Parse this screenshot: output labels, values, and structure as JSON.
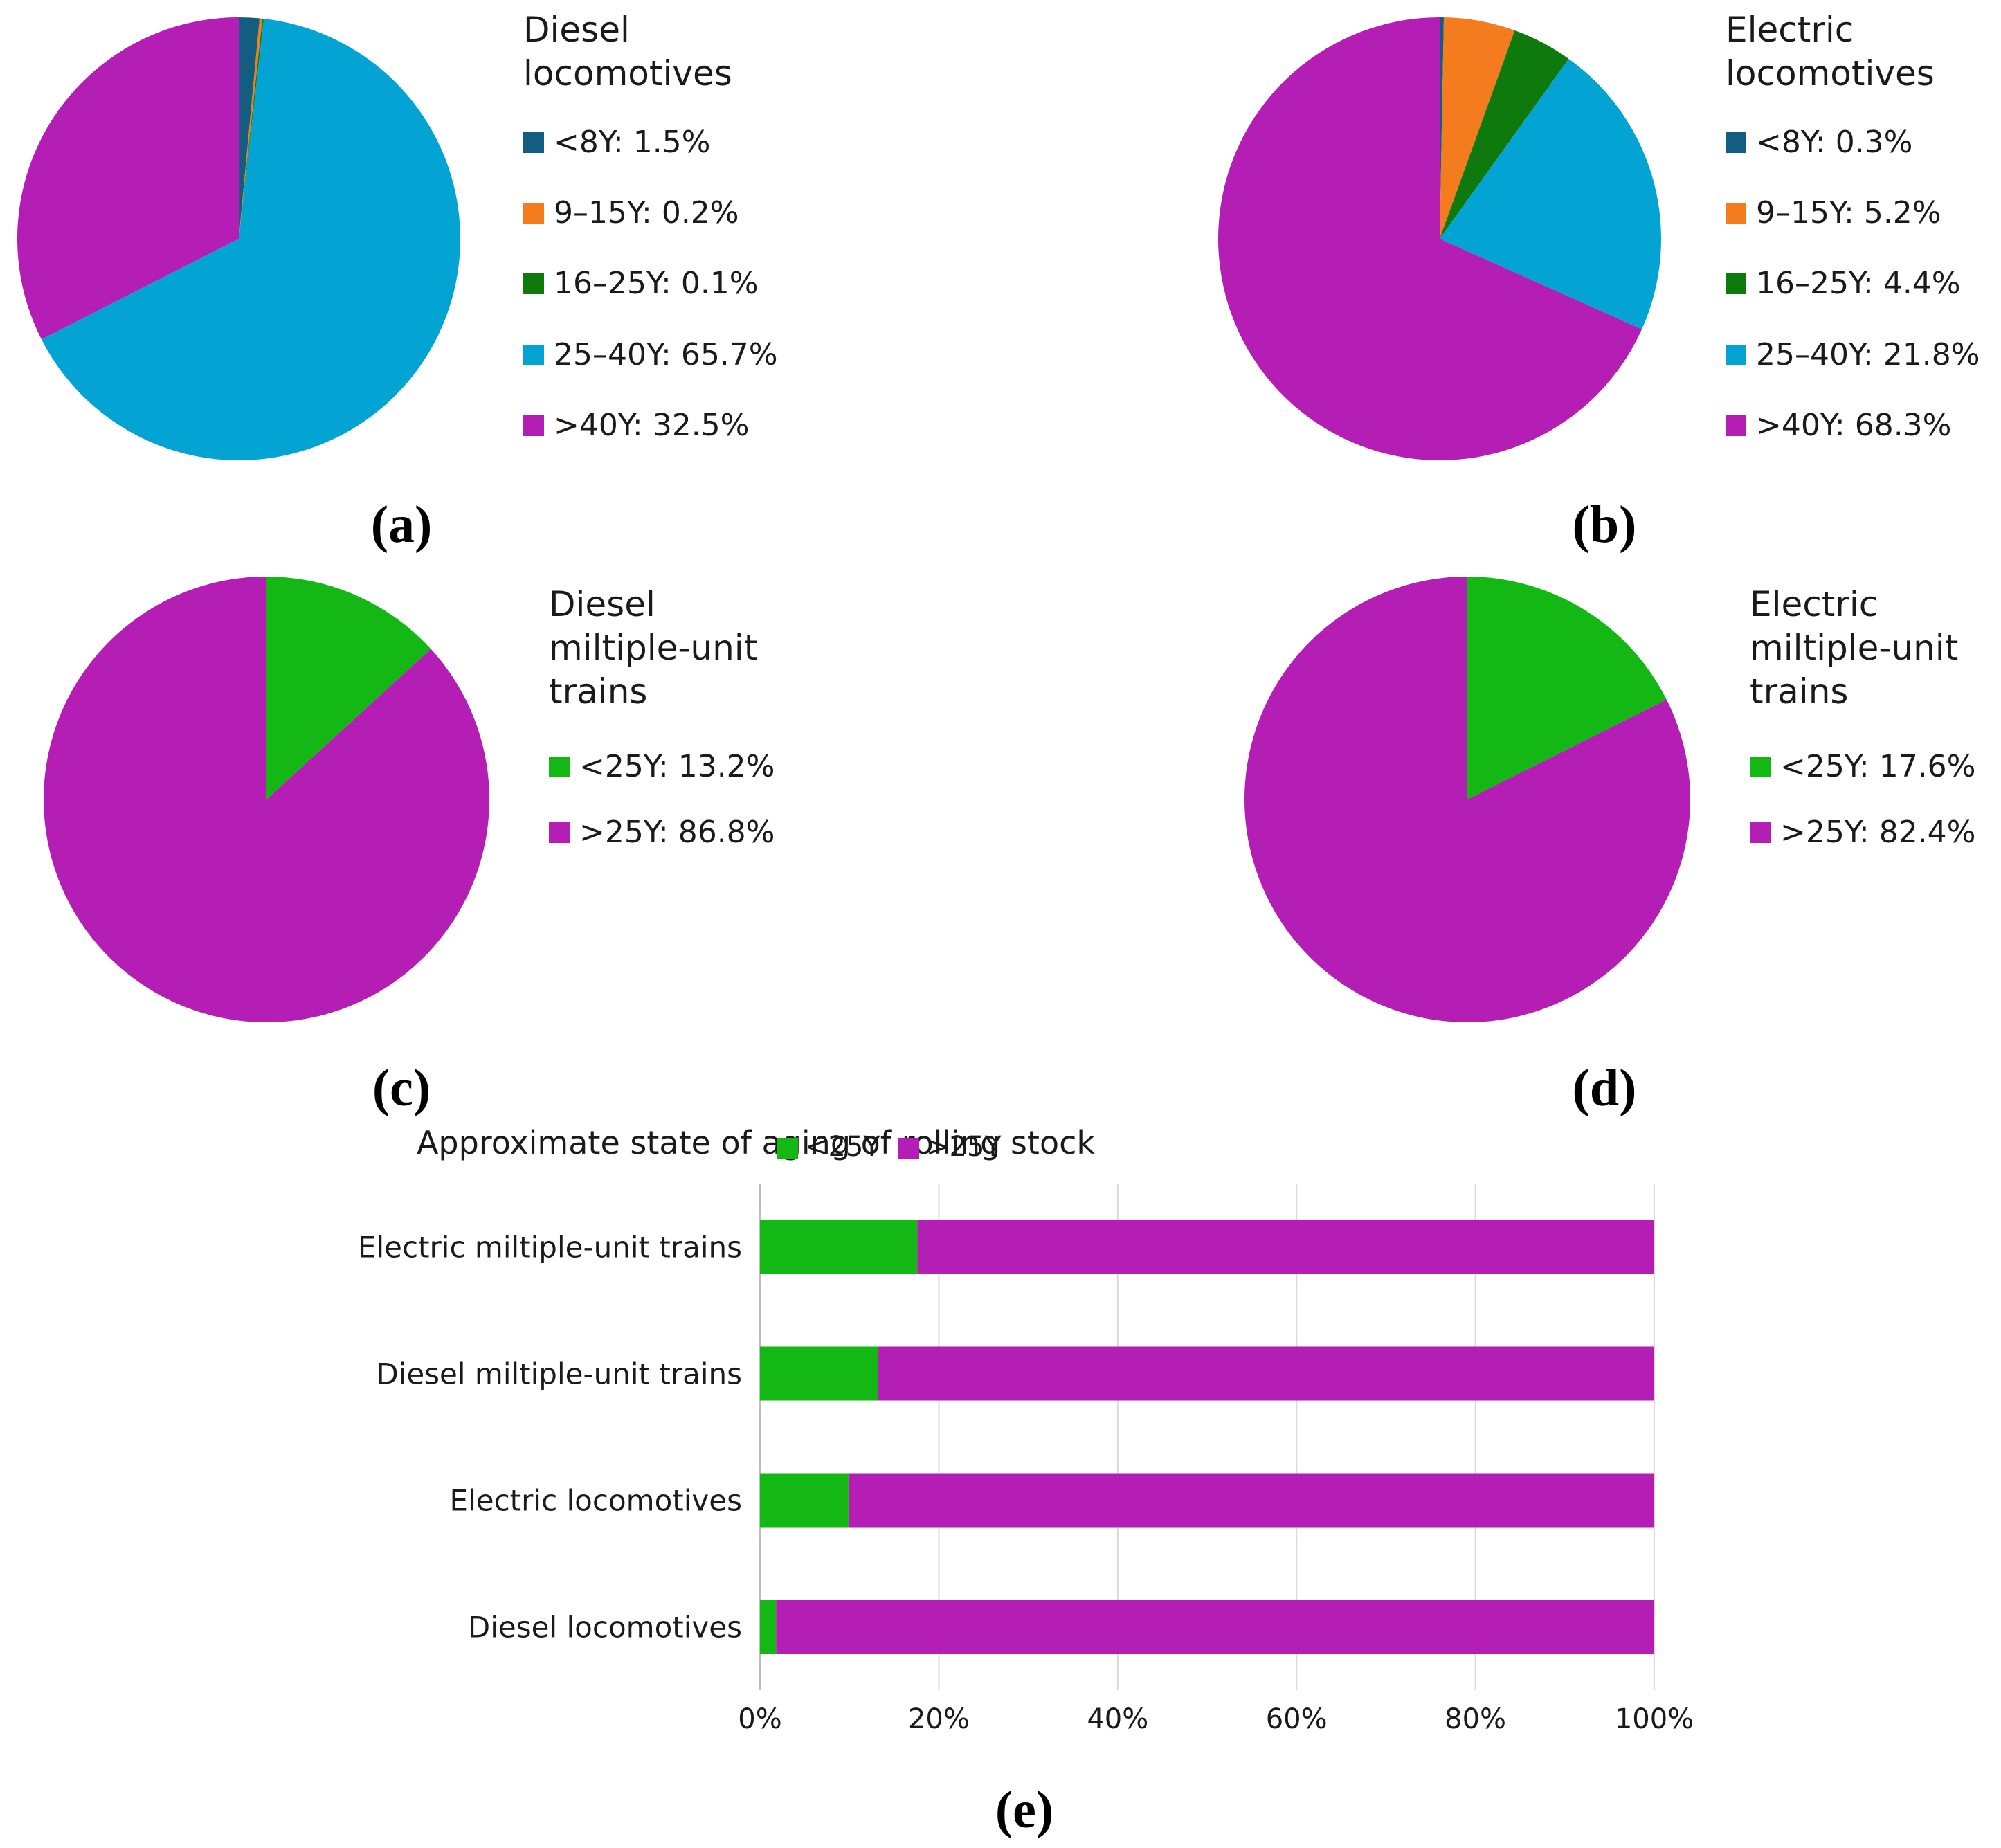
{
  "chart_data": [
    {
      "type": "pie",
      "panel": "(a)",
      "title": "Diesel\nlocomotives",
      "slices": [
        {
          "label": "<8Y: 1.5%",
          "value": 1.5,
          "color": "#135d80"
        },
        {
          "label": "9–15Y: 0.2%",
          "value": 0.2,
          "color": "#f57b1f"
        },
        {
          "label": "16–25Y: 0.1%",
          "value": 0.1,
          "color": "#0e7a0e"
        },
        {
          "label": "25–40Y: 65.7%",
          "value": 65.7,
          "color": "#03a3d4"
        },
        {
          "label": ">40Y: 32.5%",
          "value": 32.5,
          "color": "#b41eb4"
        }
      ]
    },
    {
      "type": "pie",
      "panel": "(b)",
      "title": "Electric\nlocomotives",
      "slices": [
        {
          "label": "<8Y: 0.3%",
          "value": 0.3,
          "color": "#135d80"
        },
        {
          "label": "9–15Y: 5.2%",
          "value": 5.2,
          "color": "#f57b1f"
        },
        {
          "label": "16–25Y: 4.4%",
          "value": 4.4,
          "color": "#0e7a0e"
        },
        {
          "label": "25–40Y: 21.8%",
          "value": 21.8,
          "color": "#03a3d4"
        },
        {
          "label": ">40Y: 68.3%",
          "value": 68.3,
          "color": "#b41eb4"
        }
      ]
    },
    {
      "type": "pie",
      "panel": "(c)",
      "title": "Diesel\nmiltiple-unit\ntrains",
      "slices": [
        {
          "label": "<25Y: 13.2%",
          "value": 13.2,
          "color": "#14b814"
        },
        {
          "label": ">25Y: 86.8%",
          "value": 86.8,
          "color": "#b41eb4"
        }
      ]
    },
    {
      "type": "pie",
      "panel": "(d)",
      "title": "Electric\nmiltiple-unit\ntrains",
      "slices": [
        {
          "label": "<25Y: 17.6%",
          "value": 17.6,
          "color": "#14b814"
        },
        {
          "label": ">25Y: 82.4%",
          "value": 82.4,
          "color": "#b41eb4"
        }
      ]
    },
    {
      "type": "bar",
      "orientation": "horizontal",
      "stacked": "percent",
      "panel": "(e)",
      "title": "Approximate state of aging of rolling stock",
      "categories": [
        "Electric miltiple-unit trains",
        "Diesel miltiple-unit trains",
        "Electric locomotives",
        "Diesel locomotives"
      ],
      "series": [
        {
          "name": "<25Y",
          "values": [
            17.6,
            13.2,
            9.9,
            1.8
          ],
          "color": "#14b814"
        },
        {
          "name": ">25Y",
          "values": [
            82.4,
            86.8,
            90.1,
            98.2
          ],
          "color": "#b41eb4"
        }
      ],
      "xlim": [
        0,
        100
      ],
      "xticks": [
        "0%",
        "20%",
        "40%",
        "60%",
        "80%",
        "100%"
      ],
      "grid": true,
      "legend_position": "top-right"
    }
  ]
}
